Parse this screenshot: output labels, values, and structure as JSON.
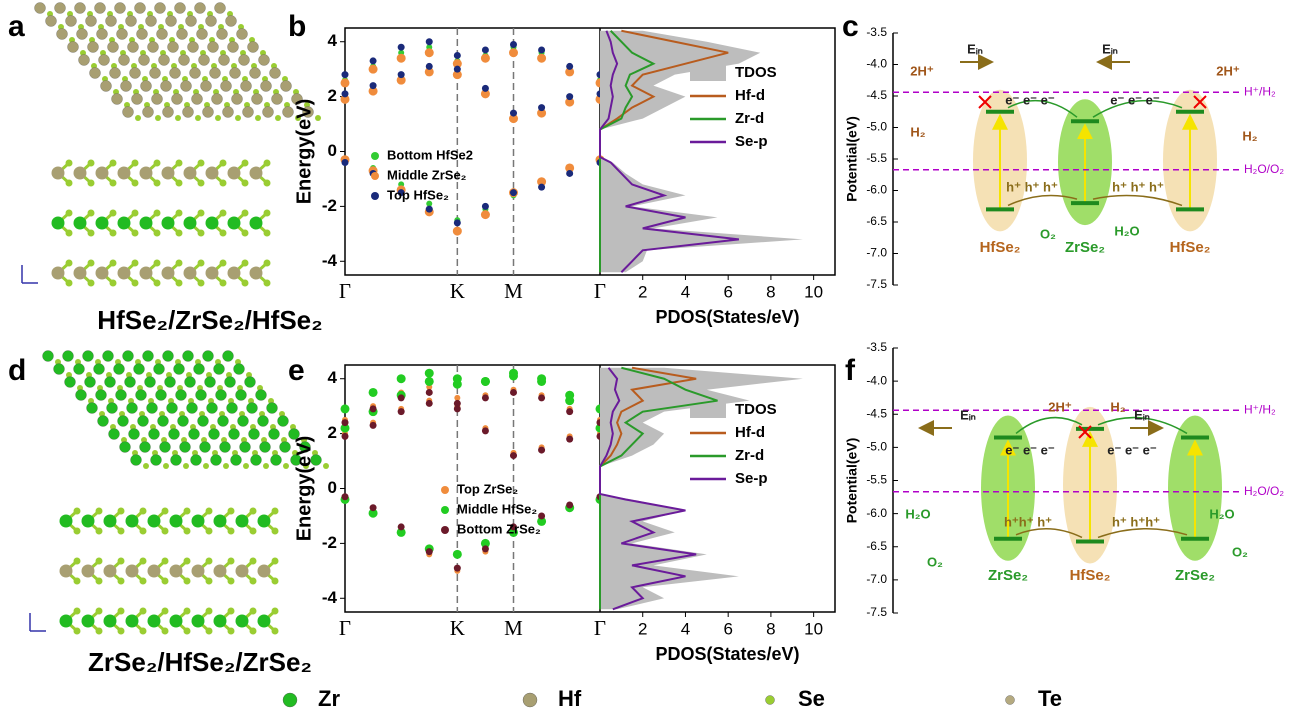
{
  "panel_labels": [
    "a",
    "b",
    "c",
    "d",
    "e",
    "f"
  ],
  "structure_top": {
    "caption": "HfSe₂/ZrSe₂/HfSe₂"
  },
  "structure_bottom": {
    "caption": "ZrSe₂/HfSe₂/ZrSe₂"
  },
  "band_top": {
    "type": "scatter",
    "ylabel": "Energy(eV)",
    "ylim": [
      -4.5,
      4.5
    ],
    "yticks": [
      -4,
      -2,
      0,
      2,
      4
    ],
    "xlim": [
      0,
      2.27
    ],
    "xticks": [
      {
        "value": 0,
        "label": "Γ"
      },
      {
        "value": 1,
        "label": "K"
      },
      {
        "value": 1.5,
        "label": "M"
      },
      {
        "value": 2.27,
        "label": "Γ"
      }
    ],
    "x": [
      0,
      0.25,
      0.5,
      0.75,
      1,
      1.25,
      1.5,
      1.75,
      2,
      2.27
    ],
    "series": [
      {
        "name": "Bottom HfSe2",
        "color": "#33cc33",
        "bands": [
          [
            2.0,
            2.3,
            2.7,
            3.0,
            2.9,
            2.2,
            1.3,
            1.5,
            1.9,
            2.0
          ],
          [
            2.6,
            3.1,
            3.6,
            3.8,
            3.3,
            3.5,
            3.8,
            3.6,
            3.0,
            2.6
          ],
          [
            -0.3,
            -0.6,
            -1.2,
            -1.9,
            -2.5,
            -2.1,
            -1.6,
            -1.2,
            -0.7,
            -0.3
          ]
        ]
      },
      {
        "name": "Middle ZrSe₂",
        "color": "#f08c3c",
        "bands": [
          [
            1.9,
            2.2,
            2.6,
            2.9,
            2.8,
            2.1,
            1.2,
            1.4,
            1.8,
            1.9
          ],
          [
            2.5,
            3.0,
            3.4,
            3.6,
            3.2,
            3.4,
            3.6,
            3.4,
            2.9,
            2.5
          ],
          [
            -0.3,
            -0.7,
            -1.4,
            -2.2,
            -2.9,
            -2.3,
            -1.5,
            -1.1,
            -0.6,
            -0.3
          ]
        ]
      },
      {
        "name": "Top HfSe₂",
        "color": "#1a2a7a",
        "bands": [
          [
            2.1,
            2.4,
            2.8,
            3.1,
            3.0,
            2.3,
            1.4,
            1.6,
            2.0,
            2.1
          ],
          [
            2.8,
            3.3,
            3.8,
            4.0,
            3.5,
            3.7,
            3.9,
            3.7,
            3.1,
            2.8
          ],
          [
            -0.4,
            -0.8,
            -1.5,
            -2.1,
            -2.6,
            -2.0,
            -1.5,
            -1.3,
            -0.8,
            -0.4
          ]
        ]
      }
    ]
  },
  "pdos_top": {
    "type": "line",
    "xlabel": "PDOS(States/eV)",
    "xlim": [
      0,
      11
    ],
    "xticks": [
      2,
      4,
      6,
      8,
      10
    ],
    "energies": [
      -4.4,
      -4.0,
      -3.6,
      -3.2,
      -2.8,
      -2.4,
      -2.0,
      -1.6,
      -1.2,
      -0.8,
      -0.4,
      -0.2,
      0.8,
      1.2,
      1.6,
      2.0,
      2.4,
      2.8,
      3.2,
      3.6,
      4.0,
      4.4
    ],
    "series": [
      {
        "name": "TDOS",
        "color": "#bdbdbd",
        "values": [
          1.2,
          2.0,
          2.2,
          9.5,
          2.5,
          5.5,
          1.5,
          4.0,
          2.0,
          1.2,
          0.6,
          0,
          0,
          2.0,
          3.0,
          4.0,
          2.5,
          3.5,
          6.5,
          7.5,
          5.0,
          2.0
        ]
      },
      {
        "name": "Hf-d",
        "color": "#b85c1e",
        "values": [
          0,
          0,
          0,
          0,
          0,
          0,
          0,
          0,
          0,
          0,
          0,
          0,
          0,
          0.8,
          1.5,
          2.5,
          1.5,
          2.0,
          4.0,
          6.0,
          3.5,
          1.0
        ]
      },
      {
        "name": "Zr-d",
        "color": "#2a9a2a",
        "values": [
          0,
          0,
          0,
          0,
          0,
          0,
          0,
          0,
          0,
          0,
          0,
          0,
          0,
          1.0,
          1.2,
          1.5,
          1.2,
          1.4,
          2.5,
          1.5,
          1.0,
          0.5
        ]
      },
      {
        "name": "Se-p",
        "color": "#6a1b9a",
        "values": [
          1.0,
          1.5,
          2.0,
          6.5,
          2.0,
          4.0,
          1.2,
          3.0,
          1.5,
          1.0,
          0.5,
          0,
          0,
          0.4,
          0.5,
          0.6,
          0.5,
          0.6,
          0.8,
          0.6,
          0.5,
          0.3
        ]
      }
    ]
  },
  "align_top": {
    "ylabel": "Potential(eV)",
    "ylim": [
      -7.5,
      -3.5
    ],
    "yticks": [
      -3.5,
      {
        "value": -4,
        "label": "-4.0"
      },
      -4.5,
      {
        "value": -5,
        "label": "-5.0"
      },
      -5.5,
      {
        "value": -6,
        "label": "-6.0"
      },
      -6.5,
      {
        "value": -7,
        "label": "-7.0"
      },
      -7.5
    ],
    "refs": [
      {
        "label": "H⁺/H₂",
        "value": -4.44
      },
      {
        "label": "H₂O/O₂",
        "value": -5.67
      }
    ],
    "layers": [
      {
        "label": "HfSe₂",
        "color": "#b5651d",
        "cbm": -4.75,
        "vbm": -6.3
      },
      {
        "label": "ZrSe₂",
        "color": "#2a9a2a",
        "cbm": -4.9,
        "vbm": -6.2
      },
      {
        "label": "HfSe₂",
        "color": "#b5651d",
        "cbm": -4.75,
        "vbm": -6.3
      }
    ],
    "annotations": [
      "Eᵢₙ",
      "Eᵢₙ",
      "2H⁺",
      "2H⁺",
      "H₂",
      "H₂",
      "e⁻ e⁻ e⁻",
      "e⁻ e⁻ e⁻",
      "h⁺ h⁺ h⁺",
      "h⁺ h⁺ h⁺",
      "O₂",
      "H₂O"
    ]
  },
  "band_bottom": {
    "type": "scatter",
    "ylabel": "Energy(eV)",
    "ylim": [
      -4.5,
      4.5
    ],
    "yticks": [
      -4,
      -2,
      0,
      2,
      4
    ],
    "xlim": [
      0,
      2.27
    ],
    "xticks": [
      {
        "value": 0,
        "label": "Γ"
      },
      {
        "value": 1,
        "label": "K"
      },
      {
        "value": 1.5,
        "label": "M"
      },
      {
        "value": 2.27,
        "label": "Γ"
      }
    ],
    "x": [
      0,
      0.25,
      0.5,
      0.75,
      1,
      1.25,
      1.5,
      1.75,
      2,
      2.27
    ],
    "series": [
      {
        "name": "Top ZrSe₂",
        "color": "#f08c3c",
        "bands": [
          [
            2.0,
            2.4,
            2.9,
            3.2,
            3.0,
            2.2,
            1.3,
            1.5,
            1.9,
            2.0
          ],
          [
            2.5,
            3.0,
            3.5,
            3.7,
            3.3,
            3.4,
            3.6,
            3.4,
            2.9,
            2.5
          ],
          [
            -0.3,
            -0.8,
            -1.5,
            -2.4,
            -3.0,
            -2.3,
            -1.5,
            -1.1,
            -0.6,
            -0.3
          ]
        ]
      },
      {
        "name": "Middle HfSe₂",
        "color": "#22cc22",
        "bands": [
          [
            2.2,
            2.8,
            3.4,
            3.9,
            4.0,
            3.9,
            4.1,
            3.9,
            3.2,
            2.2
          ],
          [
            2.9,
            3.5,
            4.0,
            4.2,
            3.8,
            3.9,
            4.2,
            4.0,
            3.4,
            2.9
          ],
          [
            -0.4,
            -0.9,
            -1.6,
            -2.2,
            -2.4,
            -2.0,
            -1.6,
            -1.2,
            -0.7,
            -0.4
          ]
        ]
      },
      {
        "name": "Bottom ZrSe₂",
        "color": "#6b1a2a",
        "bands": [
          [
            1.9,
            2.3,
            2.8,
            3.1,
            2.9,
            2.1,
            1.2,
            1.4,
            1.8,
            1.9
          ],
          [
            2.4,
            2.9,
            3.3,
            3.5,
            3.1,
            3.3,
            3.5,
            3.3,
            2.8,
            2.4
          ],
          [
            -0.3,
            -0.7,
            -1.4,
            -2.3,
            -2.9,
            -2.2,
            -1.4,
            -1.0,
            -0.6,
            -0.3
          ]
        ]
      }
    ]
  },
  "pdos_bottom": {
    "type": "line",
    "xlabel": "PDOS(States/eV)",
    "xlim": [
      0,
      11
    ],
    "xticks": [
      2,
      4,
      6,
      8,
      10
    ],
    "energies": [
      -4.4,
      -4.0,
      -3.6,
      -3.2,
      -2.8,
      -2.4,
      -2.0,
      -1.6,
      -1.2,
      -0.8,
      -0.4,
      -0.2,
      0.8,
      1.2,
      1.6,
      2.0,
      2.4,
      2.8,
      3.2,
      3.6,
      4.0,
      4.4
    ],
    "series": [
      {
        "name": "TDOS",
        "color": "#bdbdbd",
        "values": [
          0.8,
          3.0,
          2.0,
          6.5,
          2.5,
          5.0,
          1.5,
          3.5,
          2.0,
          4.0,
          1.5,
          0,
          0,
          1.5,
          2.5,
          3.0,
          2.0,
          3.0,
          7.0,
          5.0,
          9.5,
          3.0
        ]
      },
      {
        "name": "Hf-d",
        "color": "#b85c1e",
        "values": [
          0,
          0,
          0,
          0,
          0,
          0,
          0,
          0,
          0,
          0,
          0,
          0,
          0,
          0.5,
          0.8,
          1.0,
          0.8,
          1.0,
          2.0,
          1.5,
          4.5,
          1.5
        ]
      },
      {
        "name": "Zr-d",
        "color": "#2a9a2a",
        "values": [
          0,
          0,
          0,
          0,
          0,
          0,
          0,
          0,
          0,
          0,
          0,
          0,
          0,
          1.0,
          1.5,
          2.0,
          1.2,
          2.0,
          5.5,
          4.0,
          3.0,
          1.0
        ]
      },
      {
        "name": "Se-p",
        "color": "#6a1b9a",
        "values": [
          0.6,
          2.0,
          1.5,
          4.0,
          1.5,
          4.5,
          1.0,
          2.5,
          1.5,
          4.0,
          1.2,
          0,
          0,
          0.3,
          0.5,
          0.6,
          0.5,
          0.6,
          0.9,
          0.7,
          0.8,
          0.4
        ]
      }
    ]
  },
  "align_bottom": {
    "ylabel": "Potential(eV)",
    "ylim": [
      -7.5,
      -3.5
    ],
    "yticks": [
      -3.5,
      {
        "value": -4,
        "label": "-4.0"
      },
      -4.5,
      {
        "value": -5,
        "label": "-5.0"
      },
      -5.5,
      {
        "value": -6,
        "label": "-6.0"
      },
      -6.5,
      {
        "value": -7,
        "label": "-7.0"
      },
      -7.5
    ],
    "refs": [
      {
        "label": "H⁺/H₂",
        "value": -4.44
      },
      {
        "label": "H₂O/O₂",
        "value": -5.67
      }
    ],
    "layers": [
      {
        "label": "ZrSe₂",
        "color": "#2a9a2a",
        "cbm": -4.85,
        "vbm": -6.38
      },
      {
        "label": "HfSe₂",
        "color": "#b5651d",
        "cbm": -4.72,
        "vbm": -6.42
      },
      {
        "label": "ZrSe₂",
        "color": "#2a9a2a",
        "cbm": -4.85,
        "vbm": -6.38
      }
    ],
    "annotations": [
      "Eᵢₙ",
      "Eᵢₙ",
      "2H⁺",
      "H₂",
      "e⁻ e⁻ e⁻",
      "e⁻ e⁻ e⁻",
      "h⁺h⁺ h⁺",
      "h⁺ h⁺h⁺",
      "H₂O",
      "O₂",
      "H₂O",
      "O₂"
    ]
  },
  "atom_legend": {
    "items": [
      {
        "label": "Zr",
        "color": "#22bb22"
      },
      {
        "label": "Hf",
        "color": "#a89f72"
      },
      {
        "label": "Se",
        "color": "#9acd32"
      },
      {
        "label": "Te",
        "color": "#b5aa80"
      }
    ]
  }
}
